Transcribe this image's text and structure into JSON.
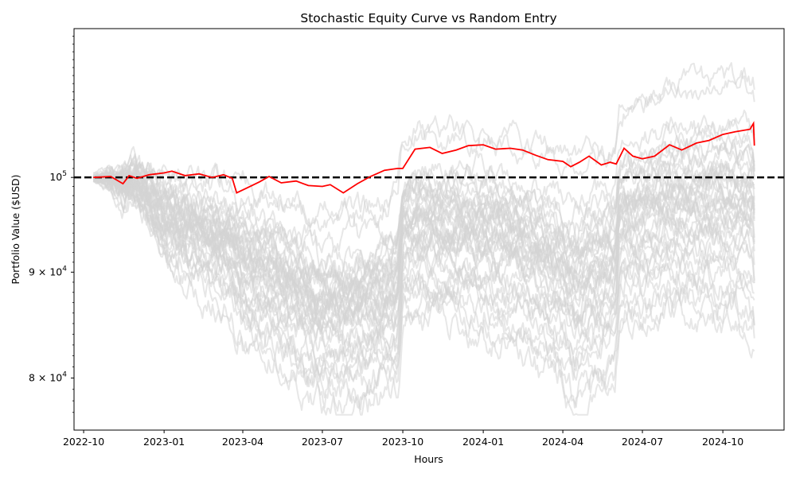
{
  "chart_data": {
    "type": "line",
    "title": "Stochastic Equity Curve vs Random Entry",
    "xlabel": "Hours",
    "ylabel": "Portfolio Value ($USD)",
    "yscale": "log",
    "xlim": [
      "2022-09-20",
      "2024-12-10"
    ],
    "ylim": [
      75500,
      118000
    ],
    "x_ticks": [
      "2022-10",
      "2023-01",
      "2023-04",
      "2023-07",
      "2023-10",
      "2024-01",
      "2024-04",
      "2024-07",
      "2024-10"
    ],
    "x_tick_dates": [
      "2022-10-01",
      "2023-01-01",
      "2023-04-01",
      "2023-07-01",
      "2023-10-01",
      "2024-01-01",
      "2024-04-01",
      "2024-07-01",
      "2024-10-01"
    ],
    "y_ticks": [
      {
        "value": 100000,
        "base": "10",
        "exp": "5"
      },
      {
        "value": 90000,
        "base": "9 × 10",
        "exp": "4"
      },
      {
        "value": 80000,
        "base": "8 × 10",
        "exp": "4"
      }
    ],
    "grid": false,
    "legend": null,
    "baseline": {
      "value": 100000,
      "style": "dashed",
      "color": "#000000"
    },
    "strategy_color": "#ff0000",
    "random_color": "#d3d3d3",
    "random_count": 40,
    "series": [
      {
        "role": "strategy",
        "x": [
          "2022-10-12",
          "2022-11-01",
          "2022-11-15",
          "2022-11-22",
          "2022-12-01",
          "2022-12-15",
          "2023-01-01",
          "2023-01-10",
          "2023-01-25",
          "2023-02-10",
          "2023-02-25",
          "2023-03-10",
          "2023-03-20",
          "2023-03-25",
          "2023-04-05",
          "2023-04-20",
          "2023-05-01",
          "2023-05-15",
          "2023-06-01",
          "2023-06-15",
          "2023-07-01",
          "2023-07-10",
          "2023-07-25",
          "2023-08-10",
          "2023-08-25",
          "2023-09-10",
          "2023-09-25",
          "2023-10-01",
          "2023-10-15",
          "2023-11-01",
          "2023-11-15",
          "2023-12-01",
          "2023-12-15",
          "2024-01-01",
          "2024-01-15",
          "2024-02-01",
          "2024-02-15",
          "2024-03-01",
          "2024-03-15",
          "2024-04-01",
          "2024-04-10",
          "2024-04-20",
          "2024-05-01",
          "2024-05-15",
          "2024-05-25",
          "2024-06-01",
          "2024-06-10",
          "2024-06-20",
          "2024-07-01",
          "2024-07-15",
          "2024-08-01",
          "2024-08-15",
          "2024-09-01",
          "2024-09-15",
          "2024-10-01",
          "2024-10-15",
          "2024-11-01",
          "2024-11-05",
          "2024-11-06"
        ],
        "values": [
          100000,
          100100,
          99300,
          100200,
          99900,
          100300,
          100500,
          100700,
          100200,
          100400,
          100000,
          100300,
          99900,
          98300,
          98800,
          99500,
          100100,
          99400,
          99600,
          99100,
          99000,
          99200,
          98300,
          99300,
          100100,
          100800,
          101000,
          101000,
          103200,
          103400,
          102700,
          103100,
          103600,
          103700,
          103200,
          103300,
          103100,
          102500,
          102000,
          101800,
          101200,
          101700,
          102400,
          101400,
          101700,
          101500,
          103300,
          102400,
          102100,
          102400,
          103700,
          103100,
          103900,
          104200,
          104900,
          105200,
          105500,
          106200,
          103600
        ]
      }
    ]
  }
}
